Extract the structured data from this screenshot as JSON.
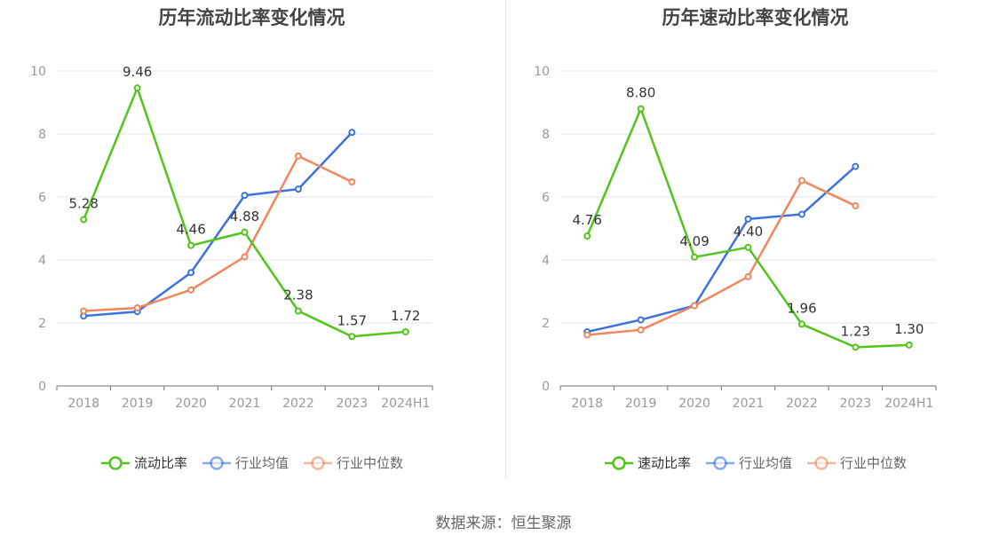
{
  "source": "数据来源：恒生聚源",
  "chart_data": [
    {
      "type": "line",
      "title": "历年流动比率变化情况",
      "categories": [
        "2018",
        "2019",
        "2020",
        "2021",
        "2022",
        "2023",
        "2024H1"
      ],
      "ylim": [
        0,
        10
      ],
      "yticks": [
        0,
        2,
        4,
        6,
        8,
        10
      ],
      "grid": true,
      "legend_position": "bottom",
      "series": [
        {
          "name": "流动比率",
          "color": "#52c41a",
          "values": [
            5.28,
            9.46,
            4.46,
            4.88,
            2.38,
            1.57,
            1.72
          ],
          "labels": [
            "5.28",
            "9.46",
            "4.46",
            "4.88",
            "2.38",
            "1.57",
            "1.72"
          ],
          "emphasis": true
        },
        {
          "name": "行业均值",
          "color": "#3a73dc",
          "values": [
            2.22,
            2.36,
            3.6,
            6.05,
            6.25,
            8.05,
            null
          ]
        },
        {
          "name": "行业中位数",
          "color": "#f0865e",
          "values": [
            2.38,
            2.48,
            3.05,
            4.1,
            7.3,
            6.48,
            null
          ]
        }
      ]
    },
    {
      "type": "line",
      "title": "历年速动比率变化情况",
      "categories": [
        "2018",
        "2019",
        "2020",
        "2021",
        "2022",
        "2023",
        "2024H1"
      ],
      "ylim": [
        0,
        10
      ],
      "yticks": [
        0,
        2,
        4,
        6,
        8,
        10
      ],
      "grid": true,
      "legend_position": "bottom",
      "series": [
        {
          "name": "速动比率",
          "color": "#52c41a",
          "values": [
            4.76,
            8.8,
            4.09,
            4.4,
            1.96,
            1.23,
            1.3
          ],
          "labels": [
            "4.76",
            "8.80",
            "4.09",
            "4.40",
            "1.96",
            "1.23",
            "1.30"
          ],
          "emphasis": true
        },
        {
          "name": "行业均值",
          "color": "#3a73dc",
          "values": [
            1.72,
            2.1,
            2.55,
            5.3,
            5.45,
            6.97,
            null
          ]
        },
        {
          "name": "行业中位数",
          "color": "#f0865e",
          "values": [
            1.62,
            1.78,
            2.55,
            3.47,
            6.52,
            5.72,
            null
          ]
        }
      ]
    }
  ]
}
